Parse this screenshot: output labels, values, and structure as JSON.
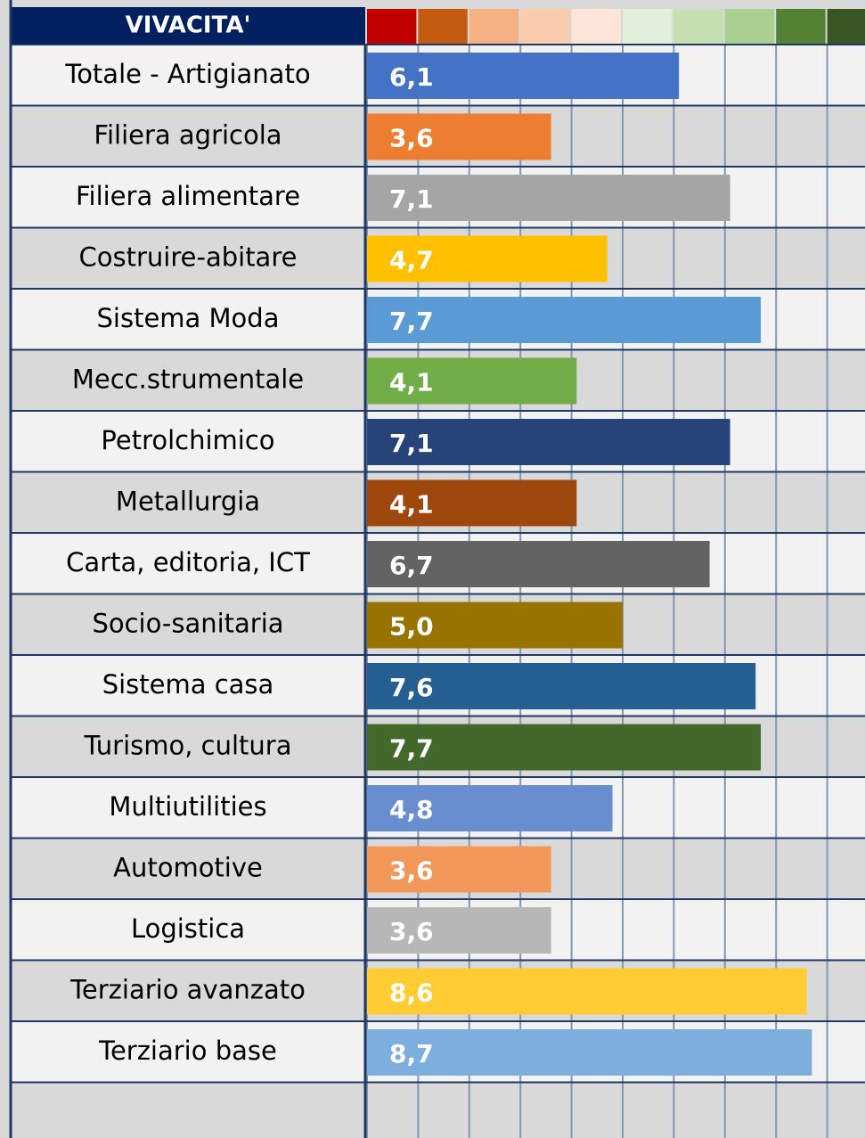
{
  "chart_data": {
    "type": "bar",
    "orientation": "horizontal",
    "title": "VIVACITA'",
    "categories": [
      "Totale - Artigianato",
      "Filiera agricola",
      "Filiera alimentare",
      "Costruire-abitare",
      "Sistema Moda",
      "Mecc.strumentale",
      "Petrolchimico",
      "Metallurgia",
      "Carta, editoria, ICT",
      "Socio-sanitaria",
      "Sistema casa",
      "Turismo, cultura",
      "Multiutilities",
      "Automotive",
      "Logistica",
      "Terziario avanzato",
      "Terziario base"
    ],
    "values": [
      6.1,
      3.6,
      7.1,
      4.7,
      7.7,
      4.1,
      7.1,
      4.1,
      6.7,
      5.0,
      7.6,
      7.7,
      4.8,
      3.6,
      3.6,
      8.6,
      8.7
    ],
    "value_labels": [
      "6,1",
      "3,6",
      "7,1",
      "4,7",
      "7,7",
      "4,1",
      "7,1",
      "4,1",
      "6,7",
      "5,0",
      "7,6",
      "7,7",
      "4,8",
      "3,6",
      "3,6",
      "8,6",
      "8,7"
    ],
    "colors": [
      "#4472c4",
      "#ed7d31",
      "#a5a5a5",
      "#ffc000",
      "#5b9bd5",
      "#70ad47",
      "#264478",
      "#9e480e",
      "#636363",
      "#997300",
      "#255e91",
      "#43682b",
      "#698ed0",
      "#f1975a",
      "#b7b7b7",
      "#ffcd33",
      "#7cafdd"
    ],
    "scale_colors": [
      "#c00000",
      "#c55a11",
      "#f4b183",
      "#f8cbad",
      "#fce4d6",
      "#e2efda",
      "#c6e0b4",
      "#a9d08e",
      "#548235",
      "#375623"
    ],
    "xlim": [
      0,
      10
    ],
    "xticks": [
      0,
      1,
      2,
      3,
      4,
      5,
      6,
      7,
      8,
      9,
      10
    ],
    "grid": true
  }
}
